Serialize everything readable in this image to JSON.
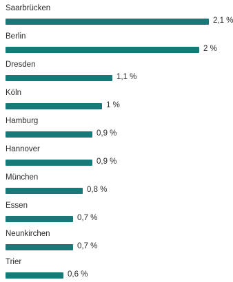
{
  "chart_data": {
    "type": "bar",
    "orientation": "horizontal",
    "bar_color": "#177a78",
    "categories": [
      "Saarbrücken",
      "Berlin",
      "Dresden",
      "Köln",
      "Hamburg",
      "Hannover",
      "München",
      "Essen",
      "Neunkirchen",
      "Trier"
    ],
    "values": [
      2.1,
      2,
      1.1,
      1,
      0.9,
      0.9,
      0.8,
      0.7,
      0.7,
      0.6
    ],
    "labels": [
      "2,1 %",
      "2 %",
      "1,1 %",
      "1 %",
      "0,9 %",
      "0,9 %",
      "0,8 %",
      "0,7 %",
      "0,7 %",
      "0,6 %"
    ],
    "xlim": [
      0,
      2.1
    ],
    "grid": false,
    "legend": "none"
  }
}
